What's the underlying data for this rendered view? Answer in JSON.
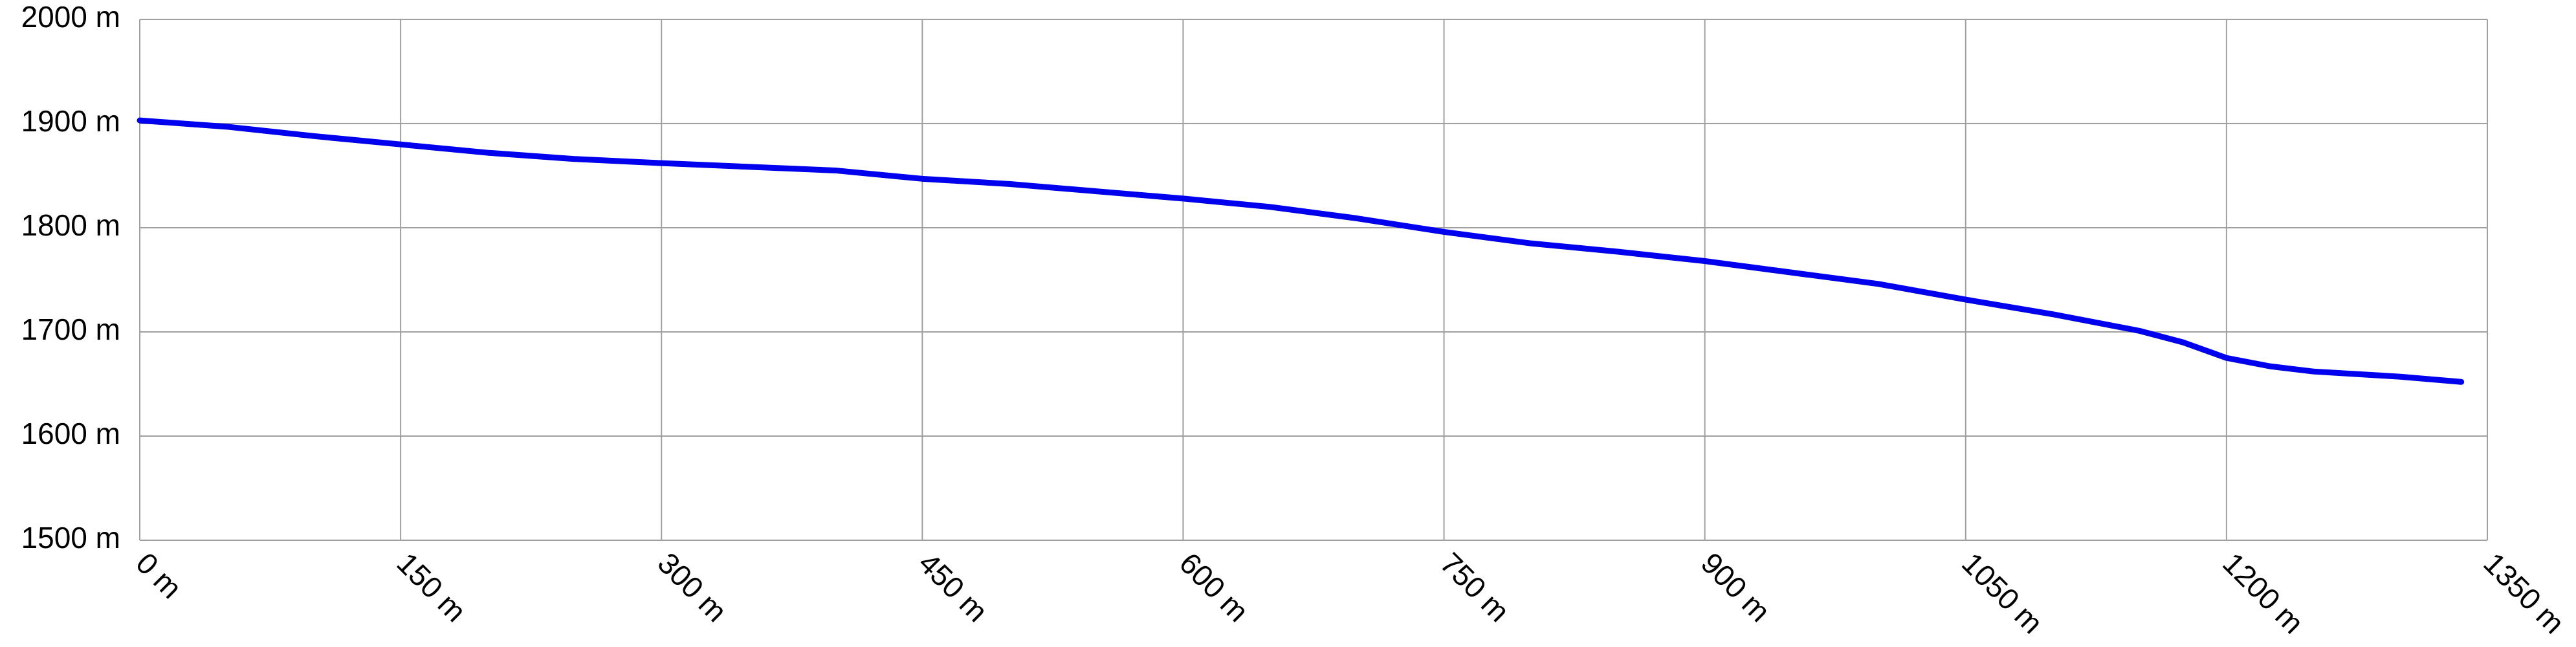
{
  "chart_data": {
    "type": "line",
    "x": [
      0,
      50,
      100,
      150,
      200,
      250,
      300,
      400,
      450,
      500,
      600,
      650,
      700,
      750,
      800,
      850,
      900,
      950,
      1000,
      1050,
      1100,
      1150,
      1175,
      1200,
      1225,
      1250,
      1300,
      1335
    ],
    "series": [
      {
        "color": "#0000ee",
        "values": [
          1903,
          1897,
          1888,
          1880,
          1872,
          1866,
          1862,
          1855,
          1847,
          1842,
          1828,
          1820,
          1809,
          1796,
          1785,
          1777,
          1768,
          1757,
          1746,
          1731,
          1717,
          1701,
          1690,
          1675,
          1667,
          1662,
          1657,
          1652
        ]
      }
    ],
    "xlim": [
      0,
      1350
    ],
    "xticks": [
      {
        "value": 0,
        "label": "0 m"
      },
      {
        "value": 150,
        "label": "150 m"
      },
      {
        "value": 300,
        "label": "300 m"
      },
      {
        "value": 450,
        "label": "450 m"
      },
      {
        "value": 600,
        "label": "600 m"
      },
      {
        "value": 750,
        "label": "750 m"
      },
      {
        "value": 900,
        "label": "900 m"
      },
      {
        "value": 1050,
        "label": "1050 m"
      },
      {
        "value": 1200,
        "label": "1200 m"
      },
      {
        "value": 1350,
        "label": "1350 m"
      }
    ],
    "ylim": [
      1500,
      2000
    ],
    "yticks": [
      {
        "value": 1500,
        "label": "1500 m"
      },
      {
        "value": 1600,
        "label": "1600 m"
      },
      {
        "value": 1700,
        "label": "1700 m"
      },
      {
        "value": 1800,
        "label": "1800 m"
      },
      {
        "value": 1900,
        "label": "1900 m"
      },
      {
        "value": 2000,
        "label": "2000 m"
      }
    ],
    "grid": true
  }
}
